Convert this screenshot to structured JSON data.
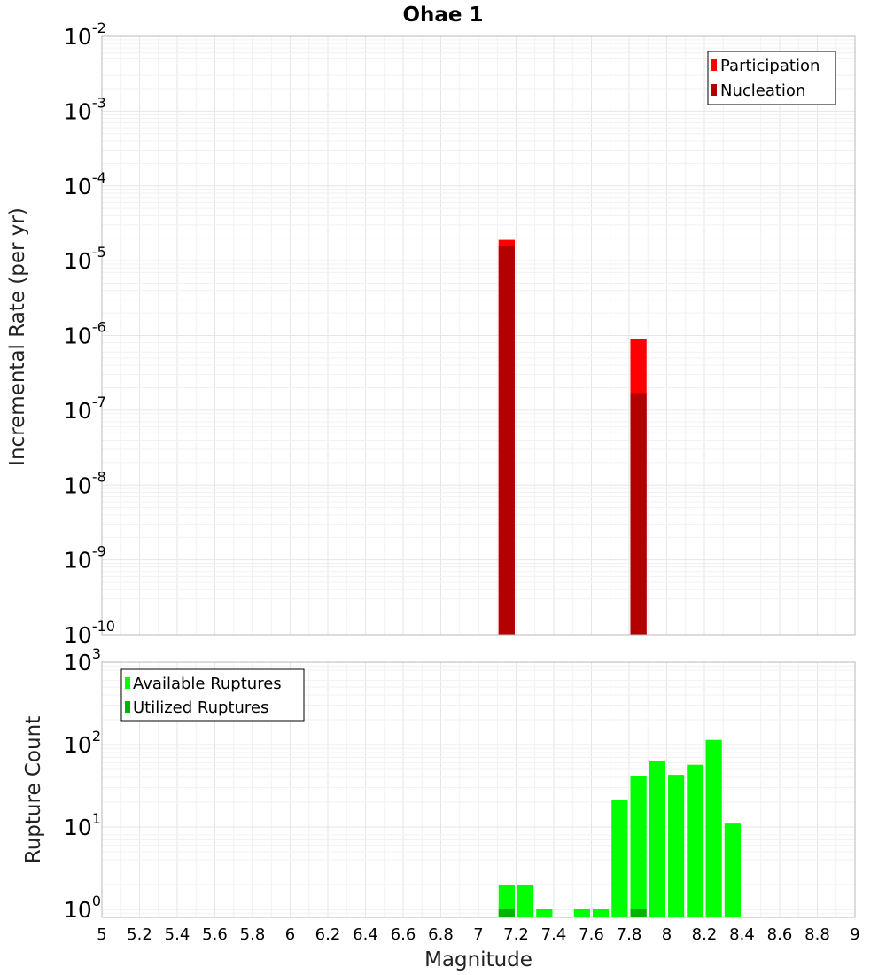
{
  "chart_data": [
    {
      "type": "bar",
      "title": "Ohae 1",
      "xlabel": "",
      "ylabel": "Incremental Rate (per yr)",
      "yscale": "log",
      "ylim": [
        1e-10,
        0.01
      ],
      "xlim": [
        5,
        9
      ],
      "grid": true,
      "legend_position": "top-right",
      "series": [
        {
          "name": "Participation",
          "color": "#ff0000",
          "x": [
            7.15,
            7.85
          ],
          "values": [
            1.9e-05,
            9e-07
          ]
        },
        {
          "name": "Nucleation",
          "color": "#b30000",
          "x": [
            7.15,
            7.85
          ],
          "values": [
            1.6e-05,
            1.7e-07
          ]
        }
      ]
    },
    {
      "type": "bar",
      "xlabel": "Magnitude",
      "ylabel": "Rupture Count",
      "yscale": "log",
      "ylim": [
        0.8,
        1000
      ],
      "xlim": [
        5,
        9
      ],
      "grid": true,
      "legend_position": "top-left",
      "x_ticks": [
        "5",
        "5.2",
        "5.4",
        "5.6",
        "5.8",
        "6",
        "6.2",
        "6.4",
        "6.6",
        "6.8",
        "7",
        "7.2",
        "7.4",
        "7.6",
        "7.8",
        "8",
        "8.2",
        "8.4",
        "8.6",
        "8.8",
        "9"
      ],
      "series": [
        {
          "name": "Available Ruptures",
          "color": "#00ff00",
          "x": [
            7.15,
            7.25,
            7.35,
            7.55,
            7.65,
            7.75,
            7.85,
            7.95,
            8.05,
            8.15,
            8.25,
            8.35
          ],
          "values": [
            2,
            2,
            1,
            1,
            1,
            21,
            42,
            64,
            43,
            57,
            114,
            11
          ]
        },
        {
          "name": "Utilized Ruptures",
          "color": "#00b300",
          "x": [
            7.15,
            7.85
          ],
          "values": [
            1,
            1
          ]
        }
      ]
    }
  ]
}
